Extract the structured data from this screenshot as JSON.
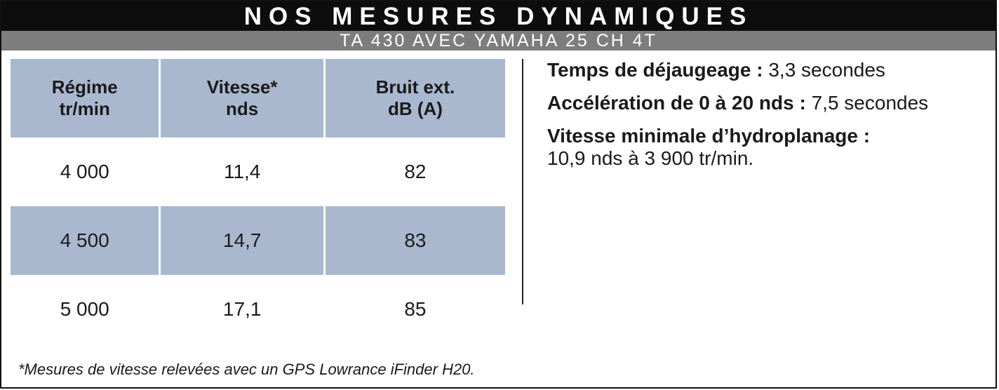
{
  "header": {
    "title": "NOS MESURES DYNAMIQUES",
    "subtitle": "TA 430 AVEC YAMAHA 25 CH 4T"
  },
  "table": {
    "columns": [
      {
        "line1": "Régime",
        "line2": "tr/min"
      },
      {
        "line1": "Vitesse*",
        "line2": "nds"
      },
      {
        "line1": "Bruit ext.",
        "line2": "dB (A)"
      }
    ],
    "rows": [
      [
        "4 000",
        "11,4",
        "82"
      ],
      [
        "4 500",
        "14,7",
        "83"
      ],
      [
        "5 000",
        "17,1",
        "85"
      ]
    ]
  },
  "stats": [
    {
      "label": "Temps de déjaugeage :",
      "value": "3,3 secondes"
    },
    {
      "label": "Accélération de 0 à 20 nds :",
      "value": "7,5 secondes"
    },
    {
      "label": "Vitesse minimale d’hydroplanage :",
      "value": "10,9 nds à 3 900 tr/min."
    }
  ],
  "footnote": "*Mesures de vitesse relevées avec un GPS Lowrance iFinder H20.",
  "colors": {
    "title_bg": "#0d0d0d",
    "subtitle_bg": "#7d7d7d",
    "table_shade": "#a9b8cf"
  }
}
